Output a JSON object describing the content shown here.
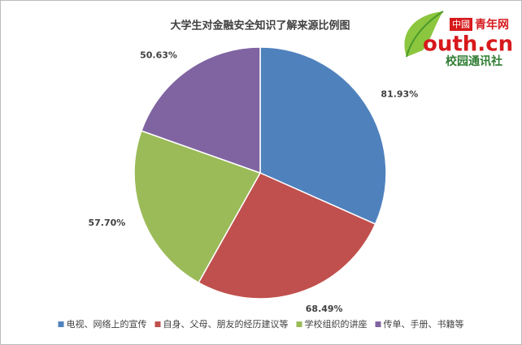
{
  "chart_data": {
    "type": "pie",
    "title": "大学生对金融安全知识了解来源比例图",
    "categories": [
      "电视、网络上的宣传",
      "自身、父母、朋友的经历建议等",
      "学校组织的讲座",
      "传单、手册、书籍等"
    ],
    "values": [
      81.93,
      68.49,
      57.7,
      50.63
    ],
    "value_labels": [
      "81.93%",
      "68.49%",
      "57.70%",
      "50.63%"
    ],
    "colors": [
      "#4f81bd",
      "#c0504d",
      "#9bbb59",
      "#8064a2"
    ],
    "legend": "bottom"
  },
  "logo": {
    "badge": "中國",
    "name": "青年网",
    "site": "outh.cn",
    "subtitle": "校园通讯社"
  }
}
